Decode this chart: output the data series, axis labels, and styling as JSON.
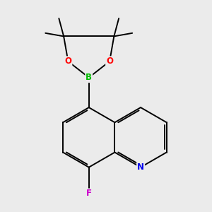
{
  "background_color": "#ebebeb",
  "bond_color": "#000000",
  "atom_colors": {
    "B": "#00bb00",
    "O": "#ff0000",
    "N": "#0000ee",
    "F": "#cc00cc",
    "C": "#000000"
  },
  "line_width": 1.4,
  "figsize": [
    3.0,
    3.0
  ],
  "dpi": 100
}
